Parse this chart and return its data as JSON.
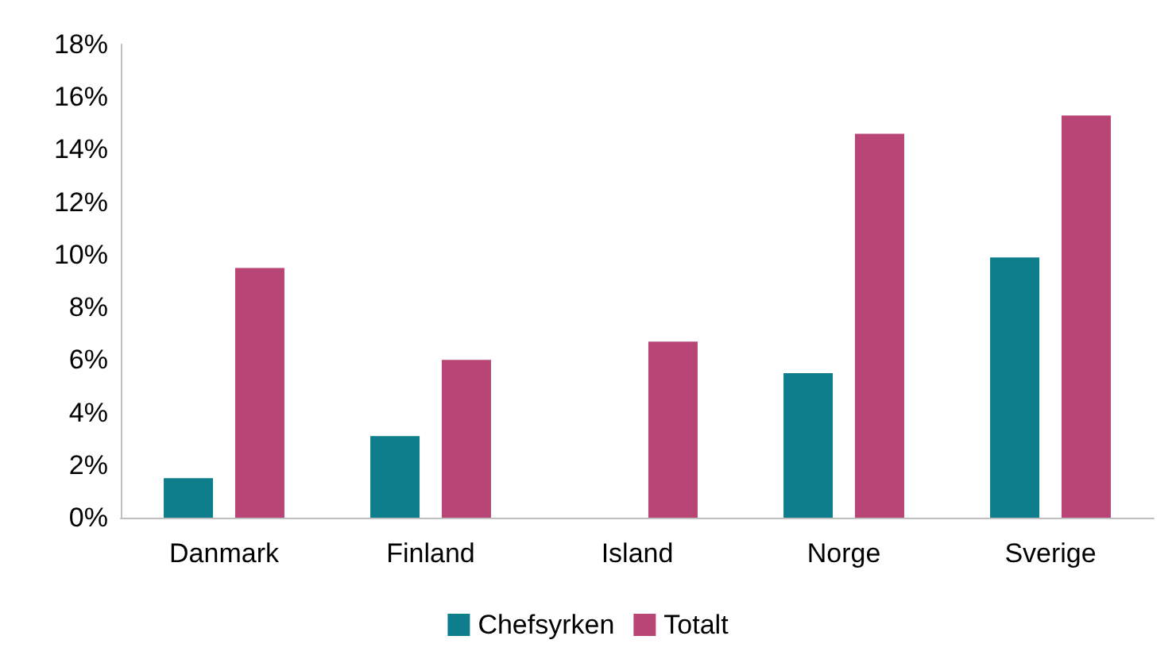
{
  "chart_data": {
    "type": "bar",
    "categories": [
      "Danmark",
      "Finland",
      "Island",
      "Norge",
      "Sverige"
    ],
    "series": [
      {
        "name": "Chefsyrken",
        "color": "#0e7d8c",
        "values": [
          1.5,
          3.1,
          null,
          5.5,
          9.9
        ]
      },
      {
        "name": "Totalt",
        "color": "#b94577",
        "values": [
          9.5,
          6.0,
          6.7,
          14.6,
          15.3
        ]
      }
    ],
    "ylim": [
      0,
      18
    ],
    "yticks": [
      {
        "value": 0,
        "label": "0%"
      },
      {
        "value": 2,
        "label": "2%"
      },
      {
        "value": 4,
        "label": "4%"
      },
      {
        "value": 6,
        "label": "6%"
      },
      {
        "value": 8,
        "label": "8%"
      },
      {
        "value": 10,
        "label": "10%"
      },
      {
        "value": 12,
        "label": "12%"
      },
      {
        "value": 14,
        "label": "14%"
      },
      {
        "value": 16,
        "label": "16%"
      },
      {
        "value": 18,
        "label": "18%"
      }
    ],
    "grid": false,
    "legend": "bottom"
  }
}
